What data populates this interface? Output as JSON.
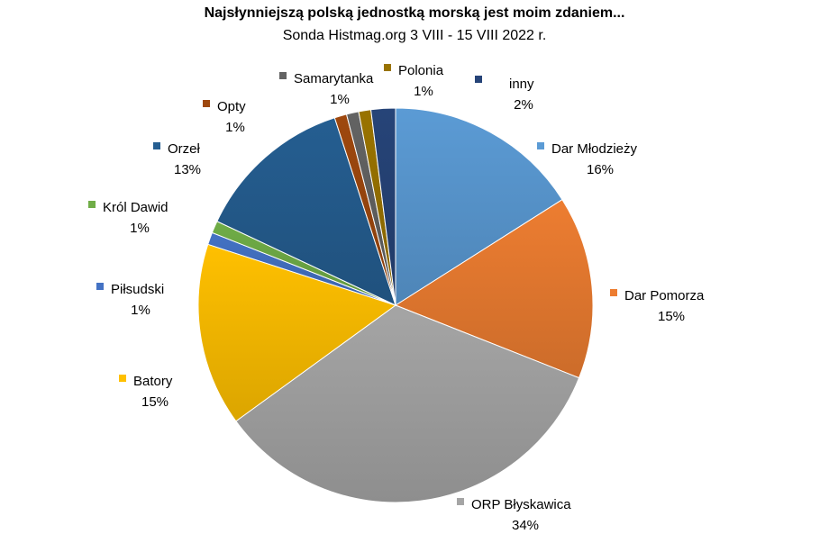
{
  "chart_data": {
    "type": "pie",
    "title": "Najsłynniejszą polską jednostką morską jest moim zdaniem...",
    "subtitle": "Sonda Histmag.org 3 VIII - 15 VIII 2022 r.",
    "slices": [
      {
        "name": "Dar Młodzieży",
        "value": 16,
        "label": "16%",
        "color": "#5b9bd5"
      },
      {
        "name": "Dar Pomorza",
        "value": 15,
        "label": "15%",
        "color": "#ed7d31"
      },
      {
        "name": "ORP Błyskawica",
        "value": 34,
        "label": "34%",
        "color": "#a5a5a5"
      },
      {
        "name": "Batory",
        "value": 15,
        "label": "15%",
        "color": "#ffc000"
      },
      {
        "name": "Piłsudski",
        "value": 1,
        "label": "1%",
        "color": "#4472c4"
      },
      {
        "name": "Król Dawid",
        "value": 1,
        "label": "1%",
        "color": "#70ad47"
      },
      {
        "name": "Orzeł",
        "value": 13,
        "label": "13%",
        "color": "#255e91"
      },
      {
        "name": "Opty",
        "value": 1,
        "label": "1%",
        "color": "#9e480e"
      },
      {
        "name": "Samarytanka",
        "value": 1,
        "label": "1%",
        "color": "#636363"
      },
      {
        "name": "Polonia",
        "value": 1,
        "label": "1%",
        "color": "#997300"
      },
      {
        "name": "inny",
        "value": 2,
        "label": "2%",
        "color": "#264478"
      }
    ]
  }
}
